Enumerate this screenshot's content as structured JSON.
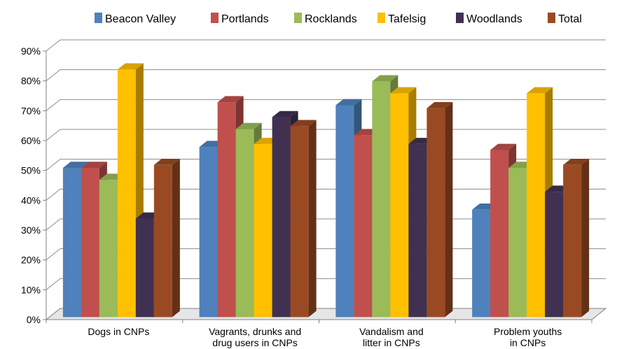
{
  "chart_data": {
    "type": "bar",
    "style": "3d-clustered-column",
    "categories": [
      [
        "Dogs in CNPs"
      ],
      [
        "Vagrants, drunks and",
        "drug users in CNPs"
      ],
      [
        "Vandalism and",
        "litter in CNPs"
      ],
      [
        "Problem youths",
        "in CNPs"
      ]
    ],
    "y_ticks": [
      "0%",
      "10%",
      "20%",
      "30%",
      "40%",
      "50%",
      "60%",
      "70%",
      "80%",
      "90%"
    ],
    "ylim": [
      0,
      90
    ],
    "grid": true,
    "legend_position": "top",
    "series": [
      {
        "name": "Beacon Valley",
        "color": "#4f81bd",
        "values": [
          50,
          57,
          71,
          36
        ]
      },
      {
        "name": "Portlands",
        "color": "#c0504d",
        "values": [
          50,
          72,
          61,
          56
        ]
      },
      {
        "name": "Rocklands",
        "color": "#9bbb59",
        "values": [
          46,
          63,
          79,
          50
        ]
      },
      {
        "name": "Tafelsig",
        "color": "#ffc000",
        "values": [
          83,
          58,
          75,
          75
        ]
      },
      {
        "name": "Woodlands",
        "color": "#403152",
        "values": [
          33,
          67,
          58,
          42
        ]
      },
      {
        "name": "Total",
        "color": "#9a4a22",
        "values": [
          51,
          64,
          70,
          51
        ]
      }
    ]
  }
}
